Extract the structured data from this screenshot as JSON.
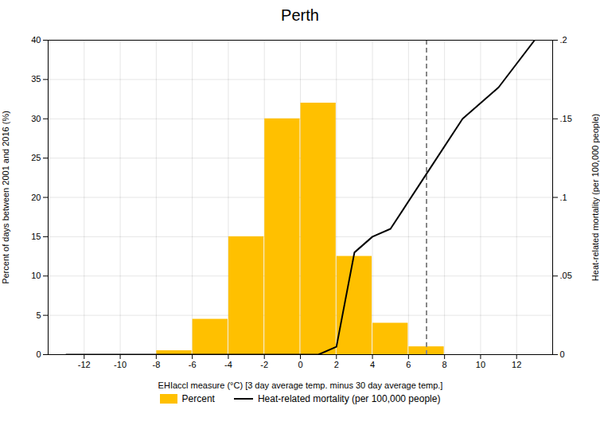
{
  "chart_data": {
    "type": "bar",
    "title": "Perth",
    "xlabel": "EHIaccl measure (°C) [3 day average temp. minus 30 day average temp.]",
    "ylabel": "Percent of days between 2001 and 2016 (%)",
    "y2label": "Heat-related mortality (per 100,000 people)",
    "xlim": [
      -14,
      14
    ],
    "xticks": [
      -12,
      -10,
      -8,
      -6,
      -4,
      -2,
      0,
      2,
      4,
      6,
      8,
      10,
      12
    ],
    "ylim": [
      0,
      40
    ],
    "yticks": [
      0,
      5,
      10,
      15,
      20,
      25,
      30,
      35,
      40
    ],
    "y2lim": [
      0,
      0.2
    ],
    "y2ticks": [
      0,
      {
        "value": 0.05,
        "label": ".05"
      },
      {
        "value": 0.1,
        "label": ".1"
      },
      {
        "value": 0.15,
        "label": ".15"
      },
      {
        "value": 0.2,
        "label": ".2"
      }
    ],
    "grid": true,
    "legend": "bottom",
    "series": [
      {
        "name": "Percent",
        "type": "bar",
        "color": "#FFC000",
        "bins": [
          -14,
          -12,
          -10,
          -8,
          -6,
          -4,
          -2,
          0,
          2,
          4,
          6,
          8,
          10,
          12,
          14
        ],
        "values": [
          0,
          0,
          0,
          0.5,
          4.5,
          15,
          30,
          32,
          12.5,
          4,
          1,
          0,
          0,
          0
        ]
      },
      {
        "name": "Heat-related mortality (per 100,000 people)",
        "type": "line",
        "color": "#000000",
        "axis": "y2",
        "x": [
          -13,
          -11,
          -9,
          -7,
          -5,
          -3,
          -1,
          1,
          2,
          3,
          4,
          5,
          7,
          9,
          11,
          13
        ],
        "values": [
          0,
          0,
          0,
          0,
          0,
          0,
          0,
          0,
          0.005,
          0.065,
          0.075,
          0.08,
          0.115,
          0.15,
          0.17,
          0.2
        ]
      }
    ],
    "vline": {
      "x": 7,
      "color": "#888888",
      "line_style": "dashed"
    }
  }
}
